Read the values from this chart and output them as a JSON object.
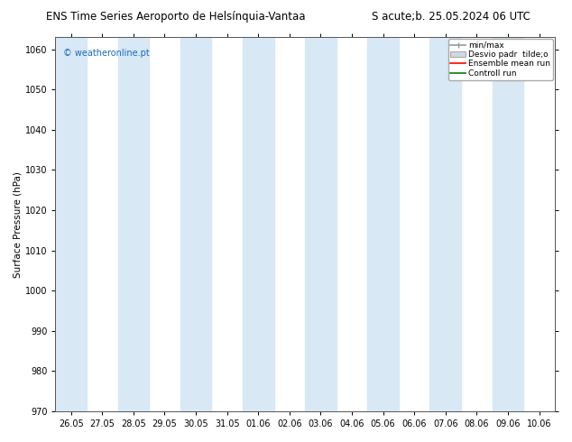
{
  "title_left": "ENS Time Series Aeroporto de Helsínquia-Vantaa",
  "title_right": "S acute;b. 25.05.2024 06 UTC",
  "ylabel": "Surface Pressure (hPa)",
  "ylim": [
    970,
    1063
  ],
  "yticks": [
    970,
    980,
    990,
    1000,
    1010,
    1020,
    1030,
    1040,
    1050,
    1060
  ],
  "x_tick_labels": [
    "26.05",
    "27.05",
    "28.05",
    "29.05",
    "30.05",
    "31.05",
    "01.06",
    "02.06",
    "03.06",
    "04.06",
    "05.06",
    "06.06",
    "07.06",
    "08.06",
    "09.06",
    "10.06"
  ],
  "x_tick_positions": [
    0,
    1,
    2,
    3,
    4,
    5,
    6,
    7,
    8,
    9,
    10,
    11,
    12,
    13,
    14,
    15
  ],
  "shaded_bands": [
    0,
    2,
    4,
    6,
    8,
    10,
    12,
    14
  ],
  "band_color": "#d8e8f5",
  "bg_color": "#ffffff",
  "plot_bg_color": "#ffffff",
  "watermark": "© weatheronline.pt",
  "watermark_color": "#1a6bbf",
  "legend_items": [
    "min/max",
    "Desvio padr  tilde;o",
    "Ensemble mean run",
    "Controll run"
  ],
  "legend_line_colors": [
    "#999999",
    "#cccccc",
    "#ff0000",
    "#008000"
  ],
  "title_fontsize": 8.5,
  "axis_fontsize": 7.5,
  "tick_fontsize": 7,
  "legend_fontsize": 6.5
}
